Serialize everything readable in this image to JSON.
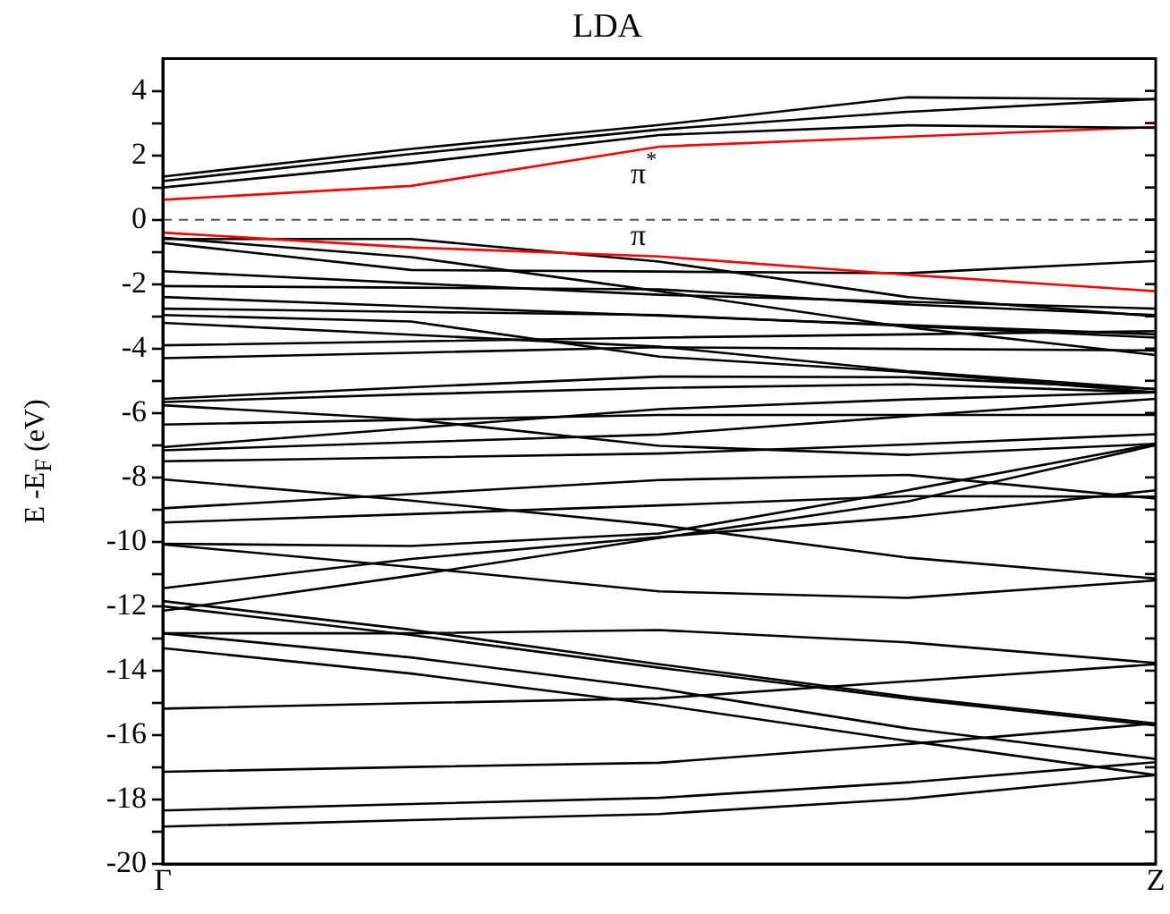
{
  "chart_data": {
    "type": "line",
    "title": "LDA",
    "ylabel": "E -E$_{F}$ (eV)",
    "categories": [
      "Γ",
      null,
      null,
      null,
      "Z"
    ],
    "ylim": [
      -20,
      5
    ],
    "yticks": [
      -20,
      {
        "value": -19,
        "label": null
      },
      -18,
      {
        "value": -17,
        "label": null
      },
      -16,
      {
        "value": -15,
        "label": null
      },
      -14,
      {
        "value": -13,
        "label": null
      },
      -12,
      {
        "value": -11,
        "label": null
      },
      -10,
      {
        "value": -9,
        "label": null
      },
      -8,
      {
        "value": -7,
        "label": null
      },
      -6,
      {
        "value": -5,
        "label": null
      },
      -4,
      {
        "value": -3,
        "label": null
      },
      -2,
      {
        "value": -1,
        "label": null
      },
      0,
      {
        "value": 1,
        "label": null
      },
      2,
      {
        "value": 3,
        "label": null
      },
      4
    ],
    "grid": false,
    "legend": false,
    "marker": "none",
    "line_style": "solid",
    "ref_lines": [
      {
        "axis": "y",
        "value": 0,
        "color": "#555555",
        "line_style": "dashed"
      }
    ],
    "series": [
      {
        "color": "#000000",
        "values": [
          1.34,
          2.2,
          2.94,
          3.8,
          3.74
        ]
      },
      {
        "color": "#000000",
        "values": [
          1.2,
          2.04,
          2.8,
          3.35,
          3.75
        ]
      },
      {
        "color": "#000000",
        "values": [
          1.0,
          1.75,
          2.63,
          2.93,
          2.85
        ]
      },
      {
        "name": "π$^{*}$",
        "color": "#ff0000",
        "values": [
          0.62,
          1.05,
          2.27,
          2.58,
          2.88
        ]
      },
      {
        "name": "π",
        "color": "#ff0000",
        "values": [
          -0.4,
          -0.86,
          -1.14,
          -1.71,
          -2.22
        ]
      },
      {
        "color": "#000000",
        "values": [
          -0.56,
          -1.16,
          -2.22,
          -3.34,
          -4.2
        ]
      },
      {
        "color": "#000000",
        "values": [
          -0.72,
          -1.56,
          -1.61,
          -1.66,
          -1.28
        ]
      },
      {
        "color": "#000000",
        "values": [
          -0.6,
          -0.6,
          -1.3,
          -2.4,
          -3.0
        ]
      },
      {
        "color": "#000000",
        "values": [
          -1.6,
          -1.97,
          -2.33,
          -2.55,
          -2.76
        ]
      },
      {
        "color": "#000000",
        "values": [
          -2.06,
          -2.11,
          -2.16,
          -2.63,
          -2.96
        ]
      },
      {
        "color": "#000000",
        "values": [
          -2.4,
          -2.69,
          -2.98,
          -3.27,
          -3.56
        ]
      },
      {
        "color": "#000000",
        "values": [
          -2.76,
          -2.86,
          -2.96,
          -3.3,
          -3.66
        ]
      },
      {
        "color": "#000000",
        "values": [
          -3.2,
          -3.57,
          -3.94,
          -4.7,
          -5.26
        ]
      },
      {
        "color": "#000000",
        "values": [
          -2.96,
          -3.16,
          -4.25,
          -4.73,
          -5.36
        ]
      },
      {
        "color": "#000000",
        "values": [
          -3.9,
          -3.78,
          -3.66,
          -3.56,
          -3.46
        ]
      },
      {
        "color": "#000000",
        "values": [
          -4.3,
          -4.13,
          -3.96,
          -4.01,
          -4.06
        ]
      },
      {
        "color": "#000000",
        "values": [
          -5.56,
          -5.2,
          -4.87,
          -4.89,
          -5.26
        ]
      },
      {
        "color": "#000000",
        "values": [
          -5.66,
          -5.42,
          -5.22,
          -5.11,
          -5.36
        ]
      },
      {
        "color": "#000000",
        "values": [
          -5.76,
          -6.2,
          -7.02,
          -7.3,
          -6.96
        ]
      },
      {
        "color": "#000000",
        "values": [
          -6.36,
          -6.21,
          -6.06,
          -6.06,
          -6.06
        ]
      },
      {
        "color": "#000000",
        "values": [
          -7.06,
          -6.47,
          -5.88,
          -5.58,
          -5.36
        ]
      },
      {
        "color": "#000000",
        "values": [
          -7.16,
          -6.91,
          -6.67,
          -6.1,
          -5.56
        ]
      },
      {
        "color": "#000000",
        "values": [
          -7.5,
          -7.38,
          -7.26,
          -6.98,
          -6.66
        ]
      },
      {
        "color": "#000000",
        "values": [
          -8.06,
          -8.72,
          -9.48,
          -10.49,
          -11.14
        ]
      },
      {
        "color": "#000000",
        "values": [
          -8.96,
          -8.52,
          -8.08,
          -7.92,
          -8.66
        ]
      },
      {
        "color": "#000000",
        "values": [
          -9.4,
          -9.14,
          -8.87,
          -8.58,
          -8.6
        ]
      },
      {
        "color": "#000000",
        "values": [
          -10.06,
          -10.13,
          -9.74,
          -8.4,
          -6.96
        ]
      },
      {
        "color": "#000000",
        "values": [
          -10.08,
          -10.78,
          -11.54,
          -11.74,
          -11.2
        ]
      },
      {
        "color": "#000000",
        "values": [
          -11.44,
          -10.53,
          -9.85,
          -9.23,
          -8.4
        ]
      },
      {
        "color": "#000000",
        "values": [
          -12.14,
          -11.05,
          -9.88,
          -8.75,
          -7.0
        ]
      },
      {
        "color": "#000000",
        "values": [
          -12.84,
          -12.84,
          -12.74,
          -13.12,
          -13.76
        ]
      },
      {
        "color": "#000000",
        "values": [
          -12.84,
          -13.59,
          -14.56,
          -15.79,
          -16.74
        ]
      },
      {
        "color": "#000000",
        "values": [
          -13.3,
          -14.09,
          -15.06,
          -16.18,
          -17.24
        ]
      },
      {
        "color": "#000000",
        "values": [
          -11.84,
          -12.73,
          -13.8,
          -14.81,
          -15.64
        ]
      },
      {
        "color": "#000000",
        "values": [
          -12.0,
          -12.89,
          -13.91,
          -14.87,
          -15.7
        ]
      },
      {
        "color": "#000000",
        "values": [
          -15.18,
          -15.01,
          -14.86,
          -14.33,
          -13.8
        ]
      },
      {
        "color": "#000000",
        "values": [
          -17.14,
          -16.99,
          -16.86,
          -16.28,
          -15.64
        ]
      },
      {
        "color": "#000000",
        "values": [
          -18.34,
          -18.14,
          -17.95,
          -17.47,
          -16.84
        ]
      },
      {
        "color": "#000000",
        "values": [
          -18.84,
          -18.64,
          -18.45,
          -17.98,
          -17.24
        ]
      }
    ]
  }
}
